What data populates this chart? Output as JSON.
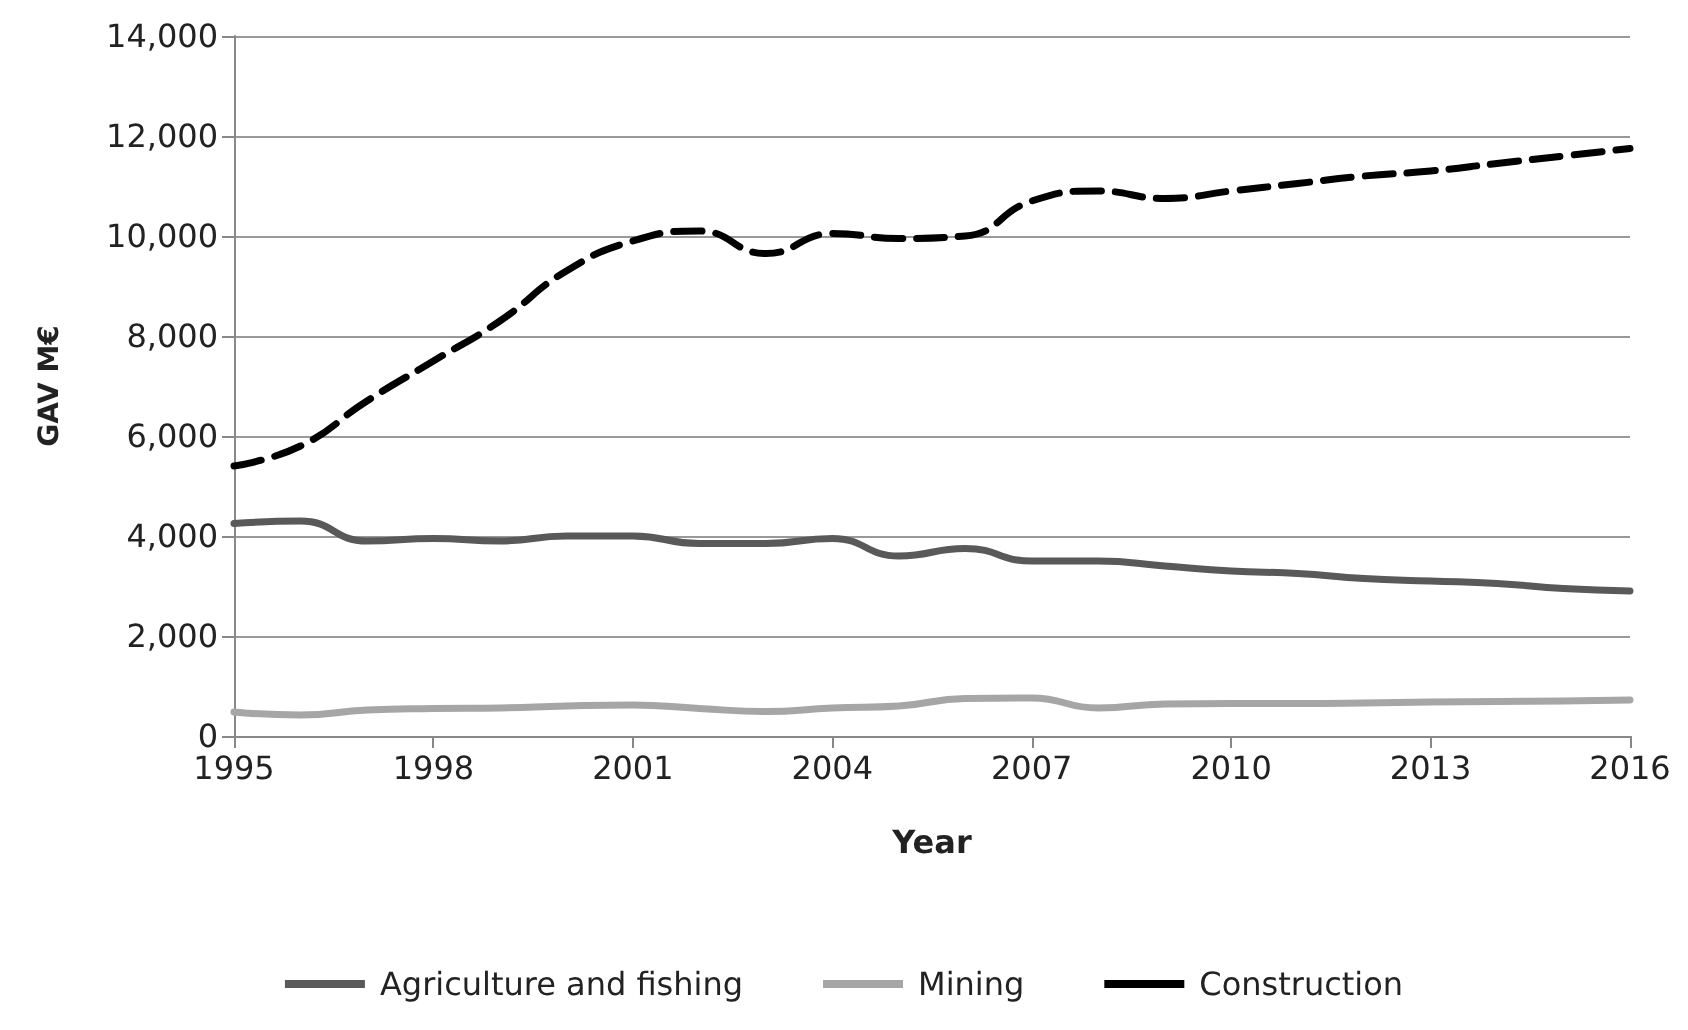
{
  "chart_data": {
    "type": "line",
    "xlabel": "Year",
    "ylabel": "GAV M€",
    "x": [
      1995,
      1996,
      1997,
      1998,
      1999,
      2000,
      2001,
      2002,
      2003,
      2004,
      2005,
      2006,
      2007,
      2008,
      2009,
      2010,
      2011,
      2012,
      2013,
      2014,
      2015,
      2016
    ],
    "series": [
      {
        "name": "Agriculture and fishing",
        "color": "#595959",
        "line_style": "solid",
        "values": [
          4250,
          4300,
          3900,
          3950,
          3900,
          4000,
          4000,
          3850,
          3850,
          3950,
          3600,
          3750,
          3500,
          3500,
          3400,
          3300,
          3250,
          3150,
          3100,
          3050,
          2950,
          2900
        ]
      },
      {
        "name": "Mining",
        "color": "#a6a6a6",
        "line_style": "solid",
        "values": [
          480,
          420,
          520,
          550,
          560,
          600,
          620,
          550,
          490,
          560,
          600,
          750,
          760,
          560,
          640,
          650,
          650,
          660,
          680,
          690,
          700,
          720
        ]
      },
      {
        "name": "Construction",
        "color": "#000000",
        "line_style": "dashed",
        "values": [
          5400,
          5800,
          6700,
          7500,
          8300,
          9300,
          9900,
          10100,
          9650,
          10050,
          9950,
          10000,
          10700,
          10900,
          10750,
          10900,
          11050,
          11200,
          11300,
          11450,
          11600,
          11750
        ]
      }
    ],
    "xlim": [
      1995,
      2016
    ],
    "xticks": [
      1995,
      1998,
      2001,
      2004,
      2007,
      2010,
      2013,
      2016
    ],
    "ylim": [
      0,
      14000
    ],
    "yticks": [
      {
        "value": 0,
        "label": "0"
      },
      {
        "value": 2000,
        "label": "2,000"
      },
      {
        "value": 4000,
        "label": "4,000"
      },
      {
        "value": 6000,
        "label": "6,000"
      },
      {
        "value": 8000,
        "label": "8,000"
      },
      {
        "value": 10000,
        "label": "10,000"
      },
      {
        "value": 12000,
        "label": "12,000"
      },
      {
        "value": 14000,
        "label": "14,000"
      }
    ],
    "grid": "y",
    "legend": "bottom",
    "marker": "none"
  }
}
